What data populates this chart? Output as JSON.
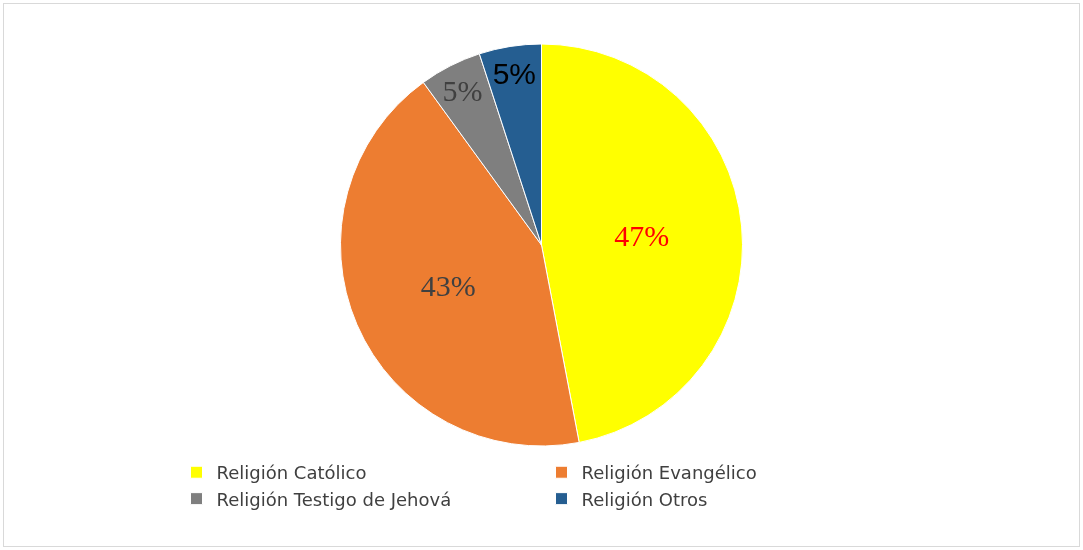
{
  "chart_data": {
    "type": "pie",
    "categories": [
      "Religión Católico",
      "Religión Evangélico",
      "Religión Testigo de Jehová",
      "Religión Otros"
    ],
    "values": [
      47,
      43,
      5,
      5
    ],
    "value_labels": [
      "47%",
      "43%",
      "5%",
      "5%"
    ],
    "colors": [
      "#ffff00",
      "#ed7d31",
      "#7f7f7f",
      "#255e91"
    ],
    "legend": "bottom"
  }
}
